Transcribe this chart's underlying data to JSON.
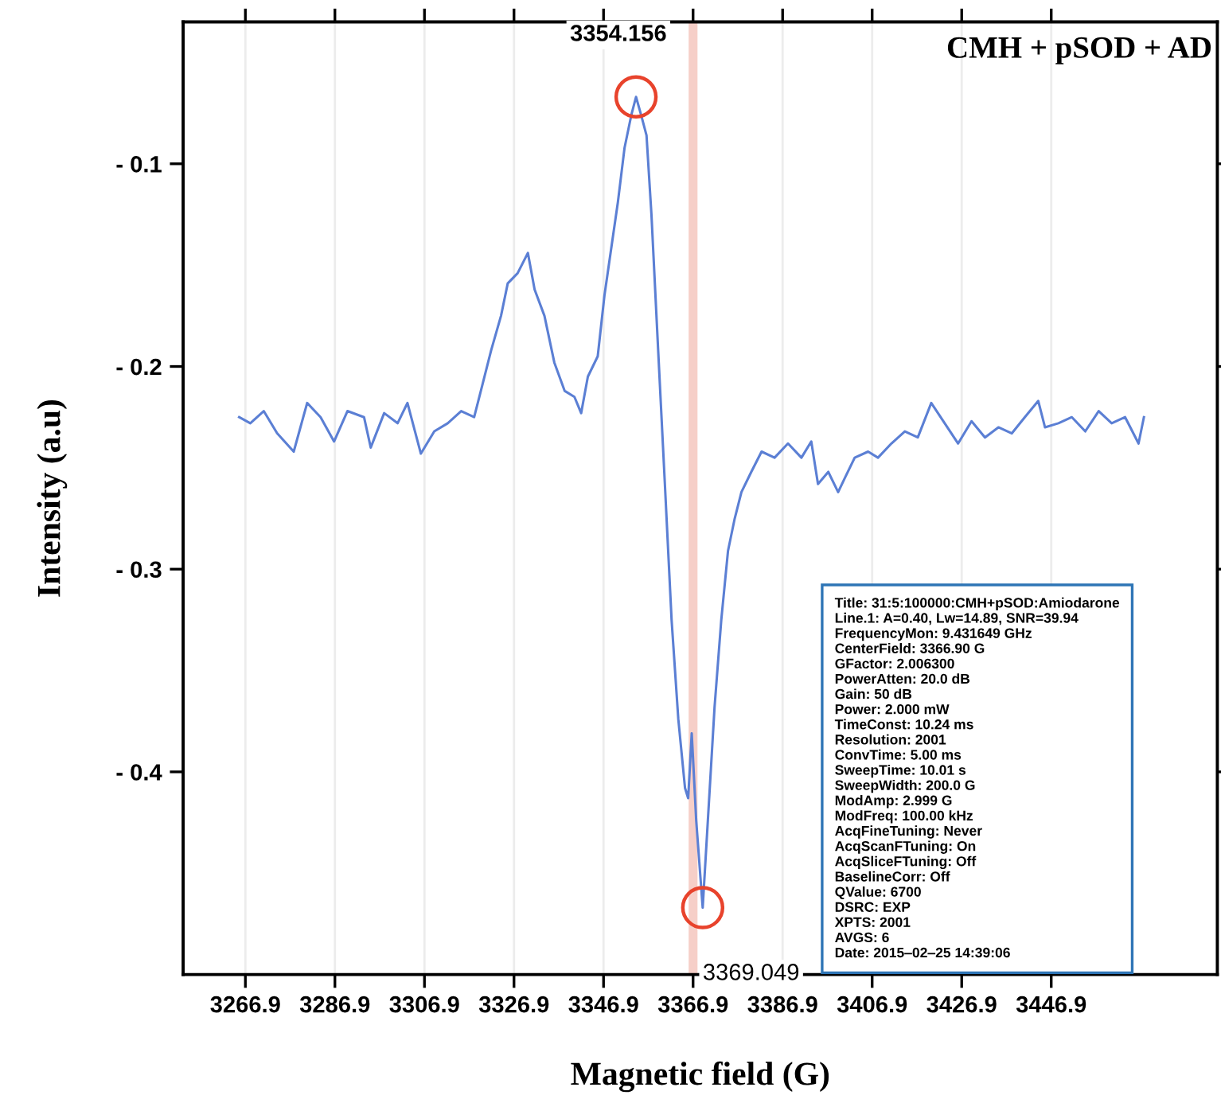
{
  "chart_data": {
    "type": "line",
    "xlabel": "Magnetic field (G)",
    "ylabel": "Intensity (a.u)",
    "xlim": [
      3253,
      3484
    ],
    "ylim": [
      -0.5,
      -0.03
    ],
    "xticks": [
      3266.9,
      3286.9,
      3306.9,
      3326.9,
      3346.9,
      3366.9,
      3386.9,
      3406.9,
      3426.9,
      3446.9
    ],
    "yticks": [
      {
        "value": -0.1,
        "label": "- 0.1"
      },
      {
        "value": -0.2,
        "label": "- 0.2"
      },
      {
        "value": -0.3,
        "label": "- 0.3"
      },
      {
        "value": -0.4,
        "label": "- 0.4"
      }
    ],
    "grid": "x",
    "marker": "none",
    "line_style": "solid",
    "series": [
      {
        "color": "#5b7fd4",
        "x": [
          3265.5,
          3268.0,
          3271.0,
          3274.0,
          3277.7,
          3280.7,
          3283.7,
          3286.7,
          3289.7,
          3293.4,
          3294.9,
          3297.9,
          3300.9,
          3303.1,
          3306.1,
          3309.1,
          3312.1,
          3315.1,
          3318.0,
          3319.5,
          3321.8,
          3324.0,
          3325.5,
          3327.7,
          3330.0,
          3331.5,
          3333.7,
          3335.9,
          3338.2,
          3340.4,
          3341.9,
          3343.4,
          3345.6,
          3347.1,
          3348.6,
          3350.1,
          3351.6,
          3353.1,
          3354.156,
          3355.3,
          3356.5,
          3357.6,
          3359.1,
          3360.6,
          3362.1,
          3363.6,
          3365.1,
          3365.8,
          3366.6,
          3367.6,
          3369.049,
          3370.2,
          3371.7,
          3373.2,
          3374.7,
          3376.2,
          3377.7,
          3379.9,
          3382.2,
          3385.1,
          3388.1,
          3391.1,
          3393.3,
          3394.8,
          3397.1,
          3399.3,
          3400.8,
          3403.0,
          3406.0,
          3408.2,
          3411.2,
          3414.2,
          3417.1,
          3420.1,
          3423.1,
          3426.1,
          3429.1,
          3432.1,
          3435.1,
          3438.1,
          3441.0,
          3444.0,
          3445.5,
          3448.5,
          3451.5,
          3454.5,
          3457.5,
          3460.4,
          3463.4,
          3466.4,
          3467.6
        ],
        "values": [
          -0.225,
          -0.228,
          -0.222,
          -0.233,
          -0.242,
          -0.218,
          -0.225,
          -0.237,
          -0.222,
          -0.225,
          -0.24,
          -0.223,
          -0.228,
          -0.218,
          -0.243,
          -0.232,
          -0.228,
          -0.222,
          -0.225,
          -0.212,
          -0.192,
          -0.175,
          -0.159,
          -0.154,
          -0.144,
          -0.162,
          -0.175,
          -0.198,
          -0.212,
          -0.215,
          -0.223,
          -0.205,
          -0.195,
          -0.165,
          -0.142,
          -0.119,
          -0.092,
          -0.076,
          -0.067,
          -0.076,
          -0.086,
          -0.125,
          -0.192,
          -0.258,
          -0.325,
          -0.374,
          -0.408,
          -0.413,
          -0.381,
          -0.424,
          -0.467,
          -0.424,
          -0.368,
          -0.325,
          -0.291,
          -0.275,
          -0.262,
          -0.252,
          -0.242,
          -0.245,
          -0.238,
          -0.245,
          -0.237,
          -0.258,
          -0.252,
          -0.262,
          -0.255,
          -0.245,
          -0.242,
          -0.245,
          -0.238,
          -0.232,
          -0.235,
          -0.218,
          -0.228,
          -0.238,
          -0.227,
          -0.235,
          -0.23,
          -0.233,
          -0.225,
          -0.217,
          -0.23,
          -0.228,
          -0.225,
          -0.232,
          -0.222,
          -0.228,
          -0.225,
          -0.238,
          -0.225
        ]
      }
    ],
    "ref_lines": [
      {
        "axis": "x",
        "value": 3366.9,
        "color": "#f6cfc8",
        "line_style": "solid"
      }
    ],
    "annotations": [
      {
        "text": "3354.156",
        "x": 3354.156,
        "y": -0.067
      },
      {
        "text": "3369.049",
        "x": 3369.049,
        "y": -0.467
      },
      "CMH + pSOD + AD",
      "Title: 31:5:100000:CMH+pSOD:Amiodarone\nLine.1: A=0.40, Lw=14.89, SNR=39.94\nFrequencyMon: 9.431649 GHz\nCenterField: 3366.90 G\nGFactor: 2.006300\nPowerAtten: 20.0 dB\nGain: 50 dB\nPower: 2.000 mW\nTimeConst: 10.24 ms\nResolution: 2001\nConvTime: 5.00 ms\nSweepTime: 10.01 s\nSweepWidth: 200.0 G\nModAmp: 2.999 G\nModFreq: 100.00 kHz\nAcqFineTuning: Never\nAcqScanFTuning: On\nAcqSliceFTuning: Off\nBaselineCorr: Off\nQValue: 6700\nDSRC: EXP\nXPTS: 2001\nAVGS: 6\nDate: 2015‒02‒25 14:39:06"
    ]
  }
}
